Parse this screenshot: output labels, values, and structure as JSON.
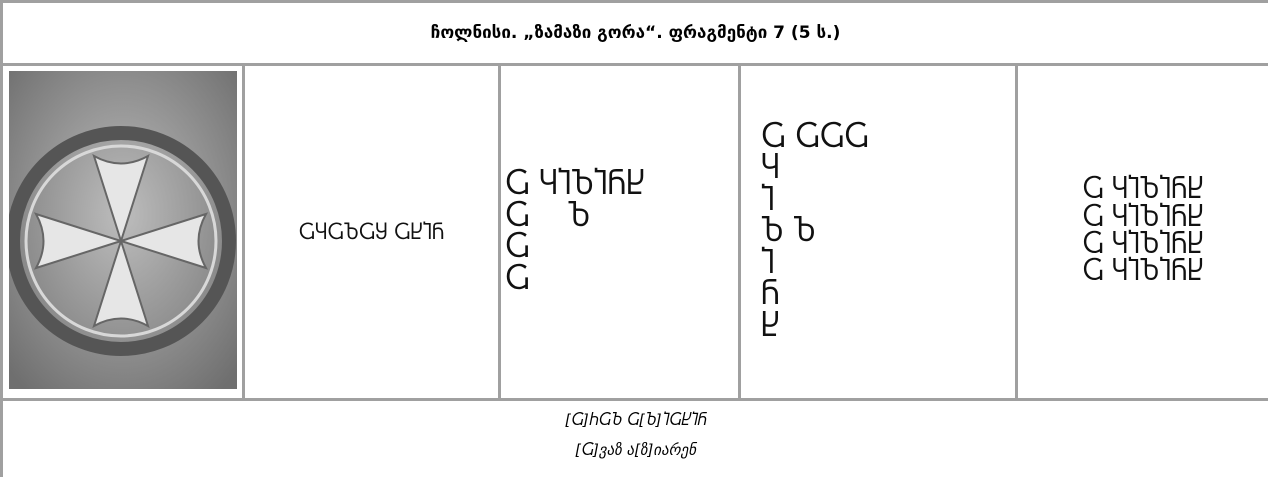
{
  "header": {
    "title": "ჩოლნისი. „ზამაზი გორა“. ფრაგმენტი 7 (5 ს.)"
  },
  "glyphs": {
    "linear": "ႺႷႺႦႺႸ ႺႾႨႬ",
    "grouped": [
      "Ⴚ ႷႨႦႨႬႾ",
      "Ⴚ    Ⴆ",
      "Ⴚ",
      "Ⴚ"
    ],
    "column": [
      "Ⴚ ႺႺႺ",
      "Ⴗ",
      "Ⴈ",
      "Ⴆ Ⴆ",
      "Ⴈ",
      "Ⴌ",
      "Ⴞ"
    ],
    "repeated": [
      "Ⴚ ႷႨႦႨႬႾ",
      "Ⴚ ႷႨႦႨႬႾ",
      "Ⴚ ႷႨႦႨႬႾ",
      "Ⴚ ႷႨႦႨႬႾ"
    ]
  },
  "footer": {
    "lines": [
      "[Ⴚ]ႹႺႦ Ⴚ[Ⴆ]ႨႺႾႨႬ",
      "[Ⴚ]ვაზ ა[ზ]იარენ"
    ]
  }
}
